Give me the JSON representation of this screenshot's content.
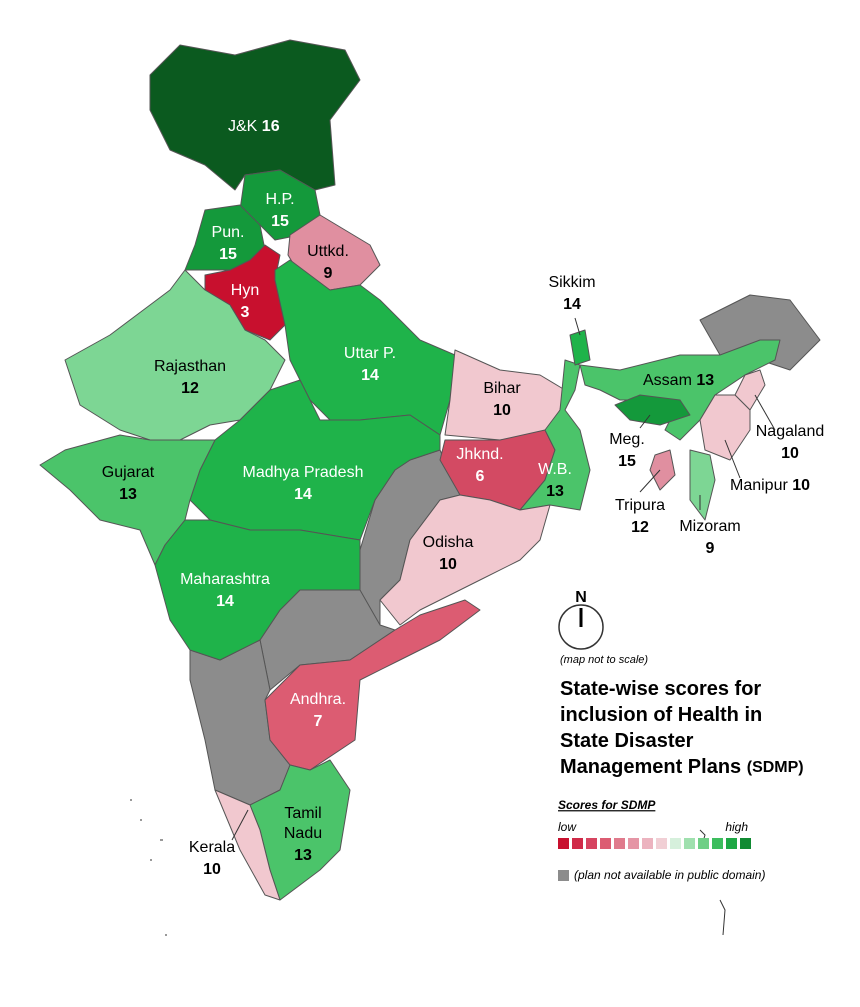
{
  "states": [
    {
      "name": "J&K",
      "score": 16,
      "color": "#0b5a1f"
    },
    {
      "name": "H.P.",
      "score": 15,
      "color": "#14993b"
    },
    {
      "name": "Pun.",
      "score": 15,
      "color": "#14993b"
    },
    {
      "name": "Uttkd.",
      "score": 9,
      "color": "#e08fa0"
    },
    {
      "name": "Hyn",
      "score": 3,
      "color": "#c8102e"
    },
    {
      "name": "Rajasthan",
      "score": 12,
      "color": "#7dd694"
    },
    {
      "name": "Uttar P.",
      "score": 14,
      "color": "#1fb34a"
    },
    {
      "name": "Bihar",
      "score": 10,
      "color": "#f1c8cf"
    },
    {
      "name": "Jhknd.",
      "score": 6,
      "color": "#d34a63"
    },
    {
      "name": "W.B.",
      "score": 13,
      "color": "#4bc46a"
    },
    {
      "name": "Odisha",
      "score": 10,
      "color": "#f1c8cf"
    },
    {
      "name": "Madhya Pradesh",
      "score": 14,
      "color": "#1fb34a"
    },
    {
      "name": "Gujarat",
      "score": 13,
      "color": "#4bc46a"
    },
    {
      "name": "Maharashtra",
      "score": 14,
      "color": "#1fb34a"
    },
    {
      "name": "Andhra.",
      "score": 7,
      "color": "#dc5c72"
    },
    {
      "name": "Tamil Nadu",
      "score": 13,
      "color": "#4bc46a"
    },
    {
      "name": "Kerala",
      "score": 10,
      "color": "#f1c8cf"
    },
    {
      "name": "Sikkim",
      "score": 14,
      "color": "#1fb34a"
    },
    {
      "name": "Assam",
      "score": 13,
      "color": "#4bc46a"
    },
    {
      "name": "Meg.",
      "score": 15,
      "color": "#14993b"
    },
    {
      "name": "Nagaland",
      "score": 10,
      "color": "#f1c8cf"
    },
    {
      "name": "Manipur",
      "score": 10,
      "color": "#f1c8cf"
    },
    {
      "name": "Tripura",
      "score": 12,
      "color": "#7dd694"
    },
    {
      "name": "Mizoram",
      "score": 9,
      "color": "#e08fa0"
    }
  ],
  "compass": "N",
  "note": "(map not to scale)",
  "title_lines": [
    "State-wise scores for",
    "inclusion of Health in",
    "State Disaster",
    "Management Plans"
  ],
  "title_suffix": "(SDMP)",
  "legend": {
    "title": "Scores for SDMP",
    "low": "low",
    "high": "high",
    "colors": [
      "#c8102e",
      "#d02a48",
      "#d64460",
      "#dc5c72",
      "#e07a8c",
      "#e595a5",
      "#ecb3bf",
      "#f1cfd5",
      "#d6f0dc",
      "#9fe0ae",
      "#6fcf86",
      "#3dbd5e",
      "#1ea845",
      "#108a32"
    ],
    "na_color": "#8c8c8c",
    "na": "(plan not available in public domain)"
  }
}
